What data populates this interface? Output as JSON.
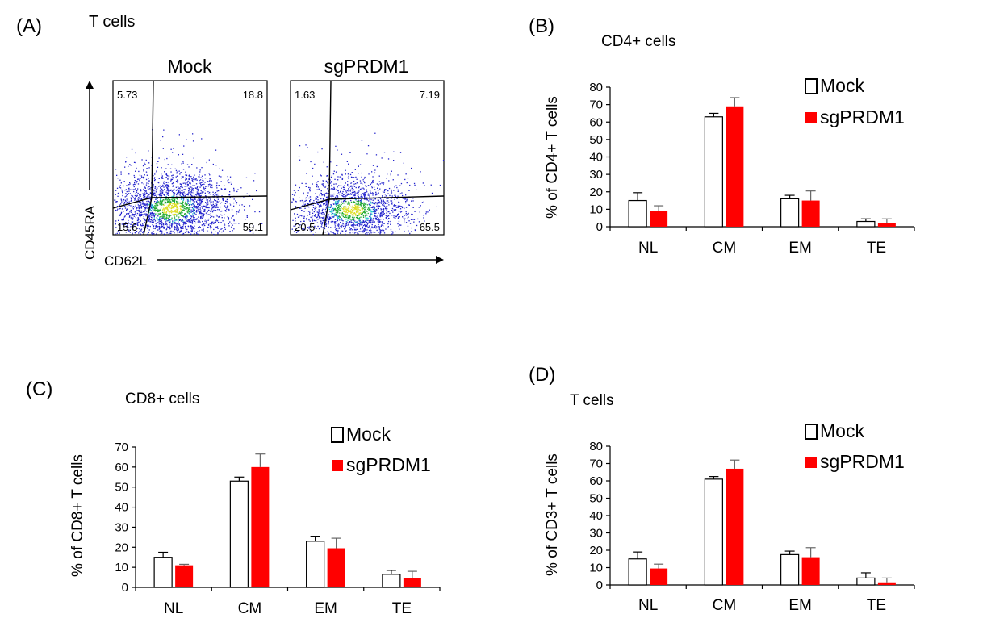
{
  "colors": {
    "mock_fill": "#ffffff",
    "sg_fill": "#ff0000",
    "axis": "#000000",
    "dot_blue": "#2222cc",
    "dot_green": "#22aa33",
    "dot_yellow": "#dddd22",
    "dot_cyan": "#22cccc"
  },
  "panel_a": {
    "label": "(A)",
    "title": "T cells",
    "y_axis_label": "CD45RA",
    "x_axis_label": "CD62L",
    "plots": [
      {
        "name": "Mock",
        "quadrants": {
          "ul": "5.73",
          "ur": "18.8",
          "ll": "15.6",
          "lr": "59.1"
        }
      },
      {
        "name": "sgPRDM1",
        "quadrants": {
          "ul": "1.63",
          "ur": "7.19",
          "ll": "20.5",
          "lr": "65.5"
        }
      }
    ]
  },
  "chart_data": [
    {
      "panel": "(B)",
      "type": "bar",
      "title": "CD4+ cells",
      "ylabel": "% of CD4+ T cells",
      "xlabel": "",
      "categories": [
        "NL",
        "CM",
        "EM",
        "TE"
      ],
      "ylim": [
        0,
        80
      ],
      "yticks": [
        0,
        10,
        20,
        30,
        40,
        50,
        60,
        70,
        80
      ],
      "legend_position": "top-right",
      "series": [
        {
          "name": "Mock",
          "values": [
            15,
            63,
            16,
            3
          ],
          "errors": [
            4.5,
            2,
            2,
            1.5
          ]
        },
        {
          "name": "sgPRDM1",
          "values": [
            9,
            69,
            15,
            2
          ],
          "errors": [
            3,
            5,
            5.5,
            2.5
          ]
        }
      ]
    },
    {
      "panel": "(C)",
      "type": "bar",
      "title": "CD8+ cells",
      "ylabel": "% of CD8+ T cells",
      "xlabel": "",
      "categories": [
        "NL",
        "CM",
        "EM",
        "TE"
      ],
      "ylim": [
        0,
        70
      ],
      "yticks": [
        0,
        10,
        20,
        30,
        40,
        50,
        60,
        70
      ],
      "legend_position": "top-right",
      "series": [
        {
          "name": "Mock",
          "values": [
            15,
            53,
            23,
            6.5
          ],
          "errors": [
            2.5,
            2,
            2.5,
            2
          ]
        },
        {
          "name": "sgPRDM1",
          "values": [
            11,
            60,
            19.5,
            4.5
          ],
          "errors": [
            0.5,
            6.5,
            5,
            3.5
          ]
        }
      ]
    },
    {
      "panel": "(D)",
      "type": "bar",
      "title": "T cells",
      "ylabel": "% of CD3+ T cells",
      "xlabel": "",
      "categories": [
        "NL",
        "CM",
        "EM",
        "TE"
      ],
      "ylim": [
        0,
        80
      ],
      "yticks": [
        0,
        10,
        20,
        30,
        40,
        50,
        60,
        70,
        80
      ],
      "legend_position": "top-right",
      "series": [
        {
          "name": "Mock",
          "values": [
            15,
            61,
            17.5,
            4
          ],
          "errors": [
            4,
            1.5,
            2,
            3
          ]
        },
        {
          "name": "sgPRDM1",
          "values": [
            9.5,
            67,
            16,
            1.5
          ],
          "errors": [
            2.5,
            5,
            5.5,
            2.5
          ]
        }
      ]
    }
  ]
}
